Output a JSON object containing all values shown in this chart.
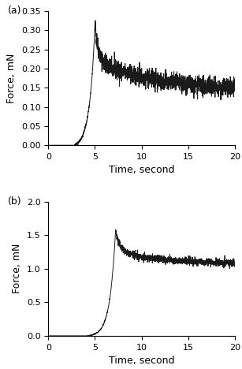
{
  "panel_a": {
    "label": "(a)",
    "xlabel": "Time, second",
    "ylabel": "Force, mN",
    "xlim": [
      0,
      20
    ],
    "ylim": [
      0,
      0.35
    ],
    "yticks": [
      0,
      0.05,
      0.1,
      0.15,
      0.2,
      0.25,
      0.3,
      0.35
    ],
    "xticks": [
      0,
      5,
      10,
      15,
      20
    ],
    "peak_time": 5.0,
    "peak_force": 0.315,
    "rise_start": 2.8,
    "plateau_final": 0.135,
    "noise_std": 0.012,
    "decay_tau1": 0.4,
    "decay_tau2": 8.0,
    "decay_amp1": 0.1,
    "decay_amp2": 0.08
  },
  "panel_b": {
    "label": "(b)",
    "xlabel": "Time, second",
    "ylabel": "Force, mN",
    "xlim": [
      0,
      20
    ],
    "ylim": [
      0,
      2.0
    ],
    "yticks": [
      0,
      0.5,
      1.0,
      1.5,
      2.0
    ],
    "xticks": [
      0,
      5,
      10,
      15,
      20
    ],
    "peak_time": 7.2,
    "peak_force": 1.56,
    "rise_start": 4.2,
    "plateau_final": 1.07,
    "noise_std": 0.028,
    "decay_tau1": 0.5,
    "decay_tau2": 5.0,
    "decay_amp1": 0.3,
    "decay_amp2": 0.19
  },
  "line_color": "#1a1a1a",
  "line_width": 0.7,
  "background_color": "#ffffff",
  "tick_fontsize": 8,
  "label_fontsize": 9
}
